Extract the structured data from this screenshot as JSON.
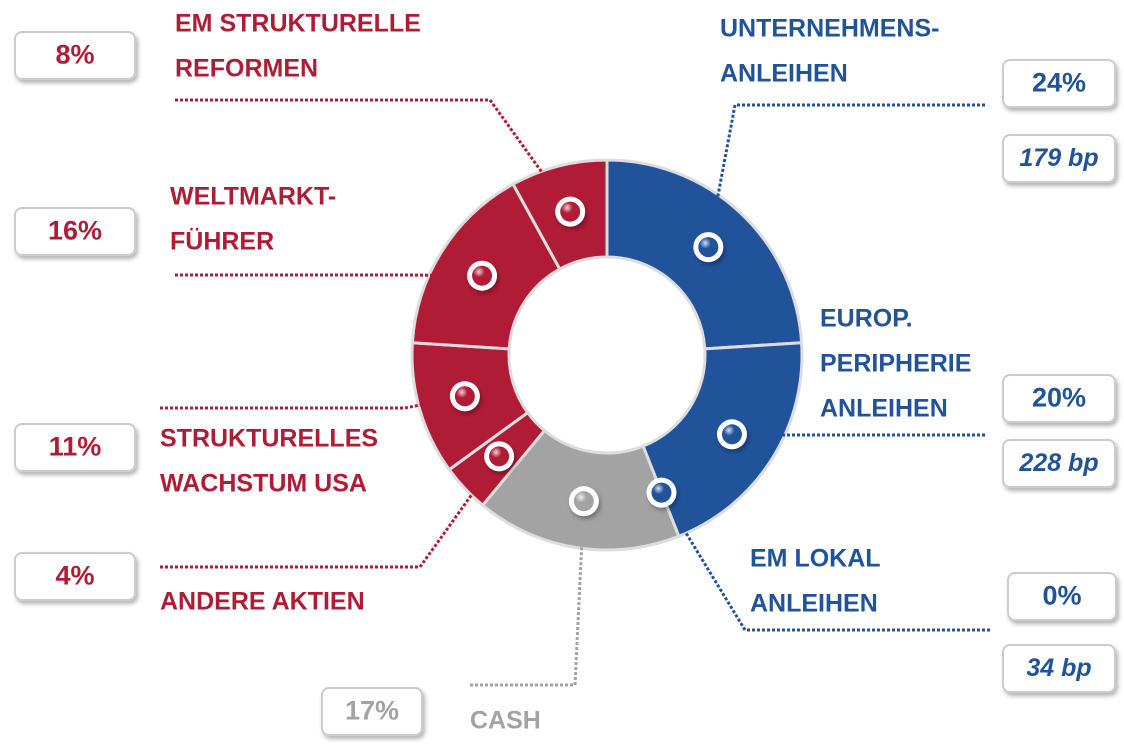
{
  "chart_data": {
    "type": "donut",
    "categories": [
      [
        "UNTERNEHMENS-",
        "ANLEIHEN"
      ],
      [
        "EUROP.",
        "PERIPHERIE",
        "ANLEIHEN"
      ],
      [
        "EM LOKAL",
        "ANLEIHEN"
      ],
      [
        "CASH"
      ],
      [
        "ANDERE AKTIEN"
      ],
      [
        "STRUKTURELLES",
        "WACHSTUM USA"
      ],
      [
        "WELTMARKT-",
        "FÜHRER"
      ],
      [
        "EM STRUKTURELLE",
        "REFORMEN"
      ]
    ],
    "values": [
      24,
      20,
      0,
      17,
      4,
      11,
      16,
      8
    ],
    "value_labels": [
      "24%",
      "20%",
      "0%",
      "17%",
      "4%",
      "11%",
      "16%",
      "8%"
    ],
    "bp_labels": [
      "179 bp",
      "228 bp",
      "34 bp",
      null,
      null,
      null,
      null,
      null
    ],
    "colors": [
      "#21539b",
      "#21539b",
      "#21539b",
      "#a3a3a3",
      "#b01c35",
      "#b01c35",
      "#b01c35",
      "#b01c35"
    ]
  }
}
